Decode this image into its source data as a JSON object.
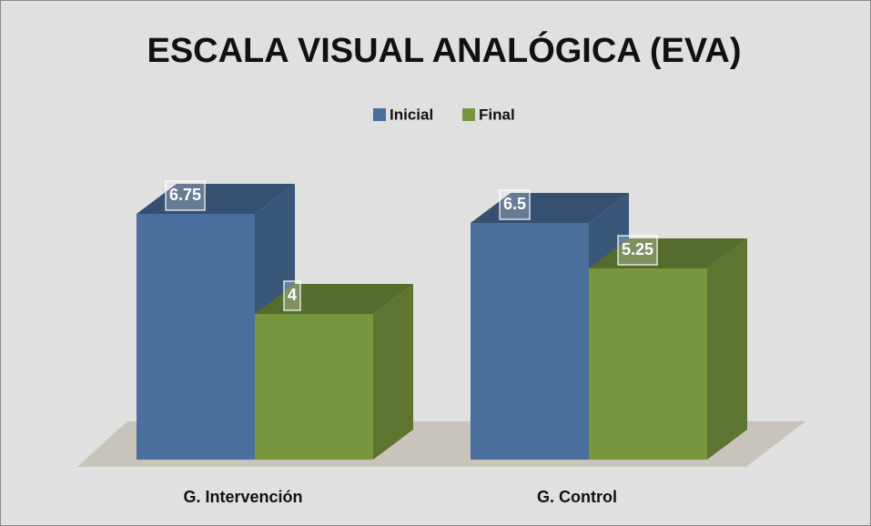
{
  "chart_data": {
    "type": "bar3d",
    "title": "ESCALA VISUAL ANALÓGICA (EVA)",
    "categories": [
      "G. Intervención",
      "G. Control"
    ],
    "series": [
      {
        "name": "Inicial",
        "color": "#4a6f9c",
        "values": [
          6.75,
          6.5
        ]
      },
      {
        "name": "Final",
        "color": "#77963e",
        "values": [
          4,
          5.25
        ]
      }
    ]
  }
}
